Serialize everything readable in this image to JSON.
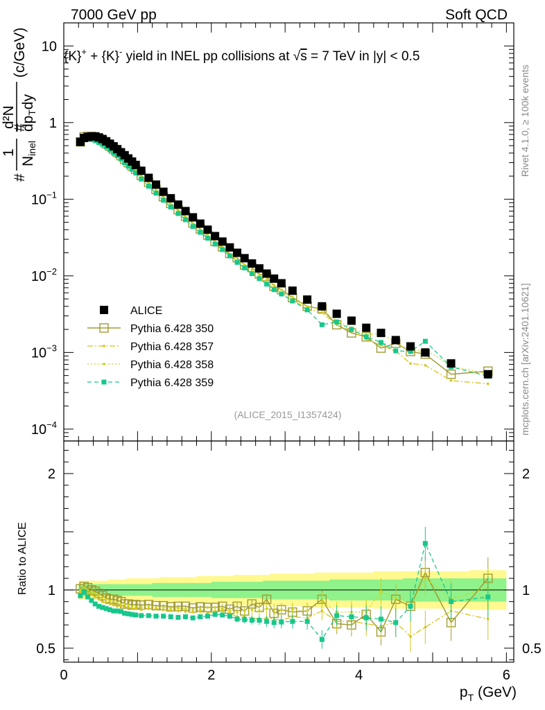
{
  "header": {
    "left": "7000 GeV pp",
    "right": "Soft QCD"
  },
  "side_text": {
    "rivet": "Rivet 4.1.0, ≥ 100k events",
    "mcplots": "mcplots.cern.ch [arXiv:2401.10621]"
  },
  "watermark": "(ALICE_2015_I1357424)",
  "title": {
    "part1": "{K}",
    "sup1": "+",
    "part2": " + {K}",
    "sup2": "-",
    "part3": " yield in INEL pp collisions at ",
    "sqrt": "√",
    "s": "s",
    "part4": " =  7 TeV in |y| < 0.5"
  },
  "ylabel_top": {
    "hash1": "#",
    "num1": "1",
    "den1": "N",
    "den1_sub": "inel",
    "hash2": "#",
    "num2": "d²N",
    "den2": "dp",
    "den2_sub": "T",
    "den2_end": "dy",
    "units": "(c/GeV)"
  },
  "ylabel_bottom": "Ratio to ALICE",
  "xlabel": {
    "main": "p",
    "sub": "T",
    "units": " (GeV)"
  },
  "top_yticks": [
    {
      "value": 10,
      "label": "10"
    },
    {
      "value": 1,
      "label": "1"
    },
    {
      "value": 0.1,
      "label": "10",
      "exp": "−1"
    },
    {
      "value": 0.01,
      "label": "10",
      "exp": "−2"
    },
    {
      "value": 0.001,
      "label": "10",
      "exp": "−3"
    },
    {
      "value": 0.0001,
      "label": "10",
      "exp": "−4"
    }
  ],
  "bottom_yticks": [
    {
      "value": 2,
      "label": "2"
    },
    {
      "value": 1,
      "label": "1"
    },
    {
      "value": 0.5,
      "label": "0.5"
    }
  ],
  "xticks": [
    {
      "value": 0,
      "label": "0"
    },
    {
      "value": 2,
      "label": "2"
    },
    {
      "value": 4,
      "label": "4"
    },
    {
      "value": 6,
      "label": "6"
    }
  ],
  "legend": [
    {
      "label": "ALICE",
      "style": "data"
    },
    {
      "label": "Pythia 6.428 350",
      "style": "350"
    },
    {
      "label": "Pythia 6.428 357",
      "style": "357"
    },
    {
      "label": "Pythia 6.428 358",
      "style": "358"
    },
    {
      "label": "Pythia 6.428 359",
      "style": "359"
    }
  ],
  "colors": {
    "data": "#000000",
    "p350": "#a09a34",
    "p357": "#d6c219",
    "p358": "#cdd31a",
    "p359": "#18c78a",
    "band_outer": "#fff98f",
    "band_inner": "#90f28a"
  },
  "chart_data": {
    "type": "scatter",
    "x": [
      0.225,
      0.275,
      0.325,
      0.375,
      0.425,
      0.475,
      0.525,
      0.575,
      0.625,
      0.675,
      0.725,
      0.775,
      0.825,
      0.875,
      0.925,
      0.975,
      1.05,
      1.15,
      1.25,
      1.35,
      1.45,
      1.55,
      1.65,
      1.75,
      1.85,
      1.95,
      2.05,
      2.15,
      2.25,
      2.35,
      2.45,
      2.55,
      2.65,
      2.75,
      2.85,
      2.95,
      3.1,
      3.3,
      3.5,
      3.7,
      3.9,
      4.1,
      4.3,
      4.5,
      4.7,
      4.9,
      5.25,
      5.75
    ],
    "series": [
      {
        "name": "ALICE",
        "values": [
          0.56,
          0.63,
          0.65,
          0.66,
          0.66,
          0.64,
          0.61,
          0.57,
          0.53,
          0.49,
          0.45,
          0.41,
          0.375,
          0.34,
          0.31,
          0.28,
          0.235,
          0.19,
          0.155,
          0.125,
          0.103,
          0.085,
          0.07,
          0.058,
          0.048,
          0.04,
          0.033,
          0.028,
          0.0235,
          0.02,
          0.017,
          0.0145,
          0.0125,
          0.0107,
          0.0092,
          0.008,
          0.0064,
          0.0049,
          0.004,
          0.0032,
          0.0026,
          0.0021,
          0.0018,
          0.00145,
          0.0012,
          0.001,
          0.00072,
          0.00052
        ]
      },
      {
        "name": "Pythia 6.428 350",
        "values": [
          0.56,
          0.65,
          0.66,
          0.66,
          0.65,
          0.62,
          0.58,
          0.53,
          0.49,
          0.45,
          0.41,
          0.37,
          0.33,
          0.3,
          0.27,
          0.245,
          0.205,
          0.166,
          0.134,
          0.108,
          0.088,
          0.073,
          0.06,
          0.049,
          0.041,
          0.034,
          0.028,
          0.024,
          0.0196,
          0.0172,
          0.0139,
          0.0128,
          0.0106,
          0.0098,
          0.0073,
          0.0066,
          0.0052,
          0.004,
          0.0037,
          0.0023,
          0.0018,
          0.0016,
          0.00114,
          0.00132,
          0.00103,
          0.00095,
          0.00052,
          0.00057
        ]
      },
      {
        "name": "Pythia 6.428 357",
        "values": [
          0.55,
          0.62,
          0.63,
          0.63,
          0.62,
          0.59,
          0.55,
          0.51,
          0.47,
          0.43,
          0.39,
          0.355,
          0.32,
          0.29,
          0.26,
          0.235,
          0.195,
          0.16,
          0.13,
          0.104,
          0.085,
          0.07,
          0.057,
          0.047,
          0.039,
          0.032,
          0.027,
          0.023,
          0.0188,
          0.0154,
          0.0131,
          0.011,
          0.0094,
          0.0081,
          0.0069,
          0.0059,
          0.0049,
          0.0037,
          0.0033,
          0.0023,
          0.0019,
          0.0015,
          0.00124,
          0.00104,
          0.00072,
          0.00068,
          0.00043,
          0.00039
        ]
      },
      {
        "name": "Pythia 6.428 358",
        "values": [
          0.56,
          0.64,
          0.65,
          0.65,
          0.64,
          0.61,
          0.57,
          0.53,
          0.48,
          0.44,
          0.4,
          0.36,
          0.33,
          0.295,
          0.265,
          0.24,
          0.2,
          0.163,
          0.132,
          0.106,
          0.087,
          0.072,
          0.059,
          0.048,
          0.04,
          0.034,
          0.028,
          0.0235,
          0.0193,
          0.0162,
          0.014,
          0.012,
          0.0102,
          0.009,
          0.0076,
          0.0066,
          0.0053,
          0.004,
          0.0036,
          0.0026,
          0.0021,
          0.0017,
          0.00178,
          0.00135,
          0.00103,
          0.0011,
          0.00066,
          0.00053
        ]
      },
      {
        "name": "Pythia 6.428 359",
        "values": [
          0.53,
          0.6,
          0.61,
          0.6,
          0.58,
          0.55,
          0.52,
          0.48,
          0.44,
          0.4,
          0.37,
          0.335,
          0.3,
          0.27,
          0.245,
          0.22,
          0.183,
          0.148,
          0.12,
          0.097,
          0.079,
          0.065,
          0.054,
          0.044,
          0.037,
          0.031,
          0.026,
          0.022,
          0.0182,
          0.015,
          0.0127,
          0.0107,
          0.0092,
          0.0078,
          0.0066,
          0.0058,
          0.0047,
          0.0036,
          0.0023,
          0.0025,
          0.002,
          0.0016,
          0.00135,
          0.00105,
          0.00103,
          0.0014,
          0.00065,
          0.00049
        ]
      }
    ],
    "ratio_series": [
      {
        "name": "Pythia 6.428 350",
        "values": [
          1.01,
          1.03,
          1.02,
          1.0,
          0.99,
          0.97,
          0.95,
          0.93,
          0.92,
          0.92,
          0.91,
          0.9,
          0.88,
          0.88,
          0.87,
          0.875,
          0.87,
          0.875,
          0.865,
          0.865,
          0.855,
          0.86,
          0.86,
          0.845,
          0.855,
          0.85,
          0.85,
          0.86,
          0.835,
          0.86,
          0.82,
          0.88,
          0.85,
          0.92,
          0.8,
          0.83,
          0.81,
          0.82,
          0.92,
          0.71,
          0.7,
          0.79,
          0.64,
          0.92,
          0.86,
          1.15,
          0.72,
          1.1
        ]
      },
      {
        "name": "Pythia 6.428 357",
        "values": [
          0.98,
          0.98,
          0.97,
          0.96,
          0.94,
          0.92,
          0.9,
          0.89,
          0.88,
          0.87,
          0.86,
          0.865,
          0.855,
          0.85,
          0.84,
          0.84,
          0.83,
          0.84,
          0.84,
          0.83,
          0.825,
          0.82,
          0.815,
          0.81,
          0.815,
          0.8,
          0.82,
          0.82,
          0.8,
          0.77,
          0.77,
          0.76,
          0.75,
          0.76,
          0.75,
          0.74,
          0.77,
          0.76,
          0.82,
          0.73,
          0.73,
          0.71,
          0.69,
          0.72,
          0.6,
          0.68,
          0.82,
          0.75
        ]
      },
      {
        "name": "Pythia 6.428 358",
        "values": [
          1.0,
          1.02,
          1.0,
          0.985,
          0.97,
          0.955,
          0.935,
          0.92,
          0.905,
          0.9,
          0.89,
          0.88,
          0.88,
          0.87,
          0.855,
          0.855,
          0.85,
          0.86,
          0.85,
          0.85,
          0.845,
          0.845,
          0.84,
          0.83,
          0.835,
          0.85,
          0.85,
          0.84,
          0.82,
          0.81,
          0.82,
          0.83,
          0.82,
          0.84,
          0.83,
          0.83,
          0.83,
          0.82,
          0.9,
          0.81,
          0.81,
          0.81,
          0.99,
          0.93,
          0.86,
          1.1,
          0.92,
          1.02
        ]
      },
      {
        "name": "Pythia 6.428 359",
        "values": [
          0.95,
          0.98,
          0.94,
          0.91,
          0.88,
          0.86,
          0.85,
          0.84,
          0.83,
          0.82,
          0.82,
          0.815,
          0.8,
          0.795,
          0.79,
          0.785,
          0.78,
          0.78,
          0.775,
          0.775,
          0.77,
          0.765,
          0.77,
          0.76,
          0.77,
          0.775,
          0.79,
          0.785,
          0.775,
          0.75,
          0.745,
          0.74,
          0.74,
          0.73,
          0.72,
          0.725,
          0.73,
          0.73,
          0.575,
          0.78,
          0.77,
          0.76,
          0.75,
          0.72,
          0.86,
          1.4,
          0.9,
          0.94
        ]
      }
    ],
    "band_outer_halfwidth": [
      0.08,
      0.08,
      0.08,
      0.08,
      0.08,
      0.08,
      0.08,
      0.08,
      0.09,
      0.09,
      0.09,
      0.09,
      0.09,
      0.1,
      0.1,
      0.1,
      0.1,
      0.1,
      0.1,
      0.11,
      0.11,
      0.11,
      0.11,
      0.11,
      0.12,
      0.12,
      0.12,
      0.12,
      0.12,
      0.13,
      0.13,
      0.13,
      0.13,
      0.13,
      0.14,
      0.14,
      0.14,
      0.14,
      0.15,
      0.15,
      0.15,
      0.15,
      0.16,
      0.16,
      0.16,
      0.16,
      0.16,
      0.17
    ],
    "band_inner_halfwidth": [
      0.05,
      0.05,
      0.05,
      0.05,
      0.05,
      0.05,
      0.05,
      0.05,
      0.05,
      0.05,
      0.05,
      0.05,
      0.05,
      0.05,
      0.05,
      0.05,
      0.05,
      0.05,
      0.06,
      0.06,
      0.06,
      0.06,
      0.06,
      0.06,
      0.06,
      0.06,
      0.07,
      0.07,
      0.07,
      0.07,
      0.07,
      0.07,
      0.07,
      0.08,
      0.08,
      0.08,
      0.08,
      0.08,
      0.08,
      0.09,
      0.09,
      0.09,
      0.09,
      0.09,
      0.1,
      0.1,
      0.1,
      0.1
    ],
    "xlabel": "p_T (GeV)",
    "ylabel": "1/N_inel d²N/dp_T dy (c/GeV)",
    "ylabel_ratio": "Ratio to ALICE",
    "xlim": [
      0,
      6.1
    ],
    "ylim": [
      7e-05,
      20
    ],
    "ylim_ratio": [
      0.38,
      2.28
    ],
    "yscale": "log",
    "legend_position": "bottom-left"
  }
}
